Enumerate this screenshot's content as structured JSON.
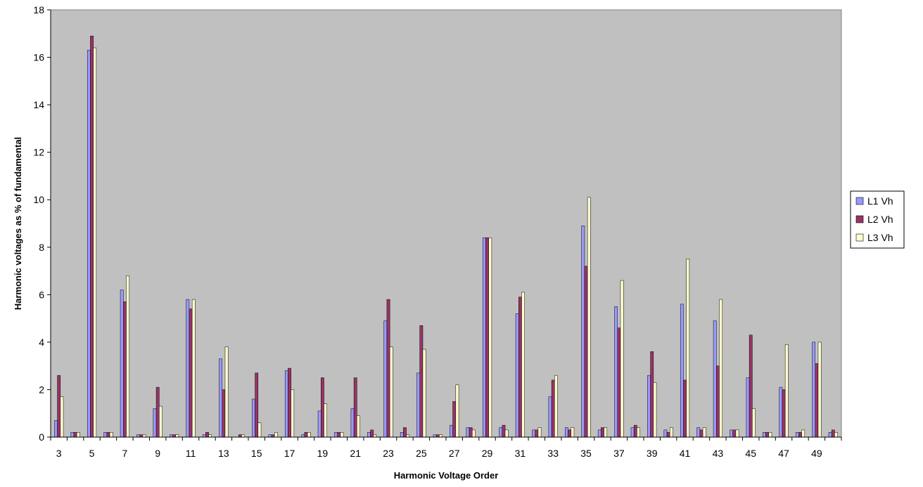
{
  "chart_data": {
    "type": "bar",
    "xlabel": "Harmonic Voltage Order",
    "ylabel": "Harmonic voltages as % of fundamental",
    "ylim": [
      0,
      18
    ],
    "yticks": [
      0,
      2,
      4,
      6,
      8,
      10,
      12,
      14,
      16,
      18
    ],
    "grid": false,
    "legend_position": "right",
    "categories": [
      "3",
      "4",
      "5",
      "6",
      "7",
      "8",
      "9",
      "10",
      "11",
      "12",
      "13",
      "14",
      "15",
      "16",
      "17",
      "18",
      "19",
      "20",
      "21",
      "22",
      "23",
      "24",
      "25",
      "26",
      "27",
      "28",
      "29",
      "30",
      "31",
      "32",
      "33",
      "34",
      "35",
      "36",
      "37",
      "38",
      "39",
      "40",
      "41",
      "42",
      "43",
      "44",
      "45",
      "46",
      "47",
      "48",
      "49",
      "50"
    ],
    "category_labels": [
      "3",
      "",
      "5",
      "",
      "7",
      "",
      "9",
      "",
      "11",
      "",
      "13",
      "",
      "15",
      "",
      "17",
      "",
      "19",
      "",
      "21",
      "",
      "23",
      "",
      "25",
      "",
      "27",
      "",
      "29",
      "",
      "31",
      "",
      "33",
      "",
      "35",
      "",
      "37",
      "",
      "39",
      "",
      "41",
      "",
      "43",
      "",
      "45",
      "",
      "47",
      "",
      "49",
      ""
    ],
    "series": [
      {
        "name": "L1 Vh",
        "color": "#9999ff",
        "values": [
          0.7,
          0.2,
          16.3,
          0.2,
          6.2,
          0.1,
          1.2,
          0.1,
          5.8,
          0.1,
          3.3,
          0.0,
          1.6,
          0.1,
          2.8,
          0.1,
          1.1,
          0.2,
          1.2,
          0.2,
          4.9,
          0.2,
          2.7,
          0.1,
          0.5,
          0.4,
          8.4,
          0.4,
          5.2,
          0.3,
          1.7,
          0.4,
          8.9,
          0.3,
          5.5,
          0.4,
          2.6,
          0.3,
          5.6,
          0.4,
          4.9,
          0.3,
          2.5,
          0.2,
          2.1,
          0.2,
          4.0,
          0.2
        ]
      },
      {
        "name": "L2 Vh",
        "color": "#993366",
        "values": [
          2.6,
          0.2,
          16.9,
          0.2,
          5.7,
          0.1,
          2.1,
          0.1,
          5.4,
          0.2,
          2.0,
          0.1,
          2.7,
          0.1,
          2.9,
          0.2,
          2.5,
          0.2,
          2.5,
          0.3,
          5.8,
          0.4,
          4.7,
          0.1,
          1.5,
          0.4,
          8.4,
          0.5,
          5.9,
          0.3,
          2.4,
          0.3,
          7.2,
          0.4,
          4.6,
          0.5,
          3.6,
          0.2,
          2.4,
          0.3,
          3.0,
          0.3,
          4.3,
          0.2,
          2.0,
          0.2,
          3.1,
          0.3
        ]
      },
      {
        "name": "L3 Vh",
        "color": "#ffffcc",
        "values": [
          1.7,
          0.2,
          16.4,
          0.2,
          6.8,
          0.1,
          1.3,
          0.1,
          5.8,
          0.1,
          3.8,
          0.1,
          0.6,
          0.2,
          2.0,
          0.2,
          1.4,
          0.2,
          0.9,
          0.1,
          3.8,
          0.1,
          3.7,
          0.1,
          2.2,
          0.3,
          8.4,
          0.3,
          6.1,
          0.4,
          2.6,
          0.4,
          10.1,
          0.4,
          6.6,
          0.4,
          2.3,
          0.4,
          7.5,
          0.4,
          5.8,
          0.3,
          1.2,
          0.2,
          3.9,
          0.3,
          4.0,
          0.2
        ]
      }
    ]
  }
}
